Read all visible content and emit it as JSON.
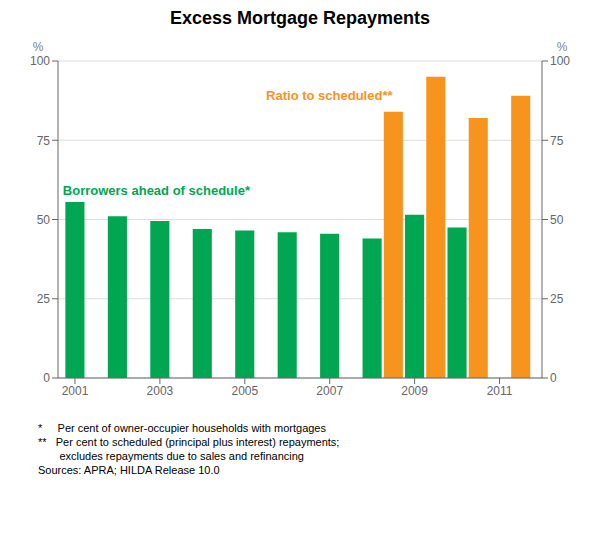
{
  "chart_data": {
    "type": "bar",
    "title": "Excess Mortgage Repayments",
    "series": [
      {
        "name": "Borrowers ahead of schedule*",
        "color": "#00A651",
        "x": [
          2001,
          2002,
          2003,
          2004,
          2005,
          2006,
          2007,
          2008,
          2009,
          2010
        ],
        "values": [
          55.5,
          51.0,
          49.5,
          47.0,
          46.5,
          46.0,
          45.5,
          44.0,
          51.5,
          47.5
        ]
      },
      {
        "name": "Ratio to scheduled**",
        "color": "#F7941D",
        "x": [
          2008.5,
          2009.5,
          2010.5,
          2011.5
        ],
        "values": [
          84.0,
          95.0,
          82.0,
          89.0
        ],
        "axis": "y2"
      }
    ],
    "xlim": [
      2000.6,
      2012.0
    ],
    "xticks": [
      2001,
      2003,
      2005,
      2007,
      2009,
      2011
    ],
    "ylim": [
      0,
      100
    ],
    "yticks": [
      0,
      25,
      50,
      75,
      100
    ],
    "y2lim": [
      0,
      100
    ],
    "y2ticks": [
      0,
      25,
      50,
      75,
      100
    ],
    "ylabel": "%",
    "y2label": "%",
    "grid": true,
    "footnotes": [
      "*     Per cent of owner-occupier households with mortgages",
      "**   Per cent to scheduled (principal plus interest) repayments;\n       excludes repayments due to sales and refinancing",
      "Sources: APRA; HILDA Release 10.0"
    ]
  }
}
